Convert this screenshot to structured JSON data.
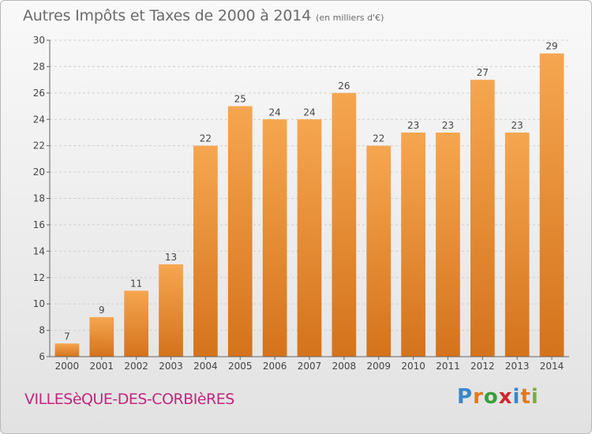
{
  "header": {
    "title": "Autres Impôts et Taxes de 2000 à 2014",
    "subtitle": "(en milliers d'€)"
  },
  "location": {
    "name": "VILLESèQUE-DES-CORBIèRES"
  },
  "brand": {
    "letters": [
      "P",
      "r",
      "o",
      "x",
      "i",
      "t",
      "i"
    ],
    "colors": [
      "#3a86c8",
      "#e07a1f",
      "#3a9e3a",
      "#d1262c",
      "#3a86c8",
      "#e07a1f",
      "#7ab03a"
    ]
  },
  "chart_data": {
    "type": "bar",
    "categories": [
      "2000",
      "2001",
      "2002",
      "2003",
      "2004",
      "2005",
      "2006",
      "2007",
      "2008",
      "2009",
      "2010",
      "2011",
      "2012",
      "2013",
      "2014"
    ],
    "values": [
      7,
      9,
      11,
      13,
      22,
      25,
      24,
      24,
      26,
      22,
      23,
      23,
      27,
      23,
      29
    ],
    "ylim": [
      6,
      30
    ],
    "yticks": [
      6,
      8,
      10,
      12,
      14,
      16,
      18,
      20,
      22,
      24,
      26,
      28,
      30
    ],
    "grid": true,
    "colors": {
      "bar_top": "#f6a650",
      "bar_bottom": "#d4731c",
      "grid": "#cfcfcf",
      "text": "#444444"
    }
  }
}
